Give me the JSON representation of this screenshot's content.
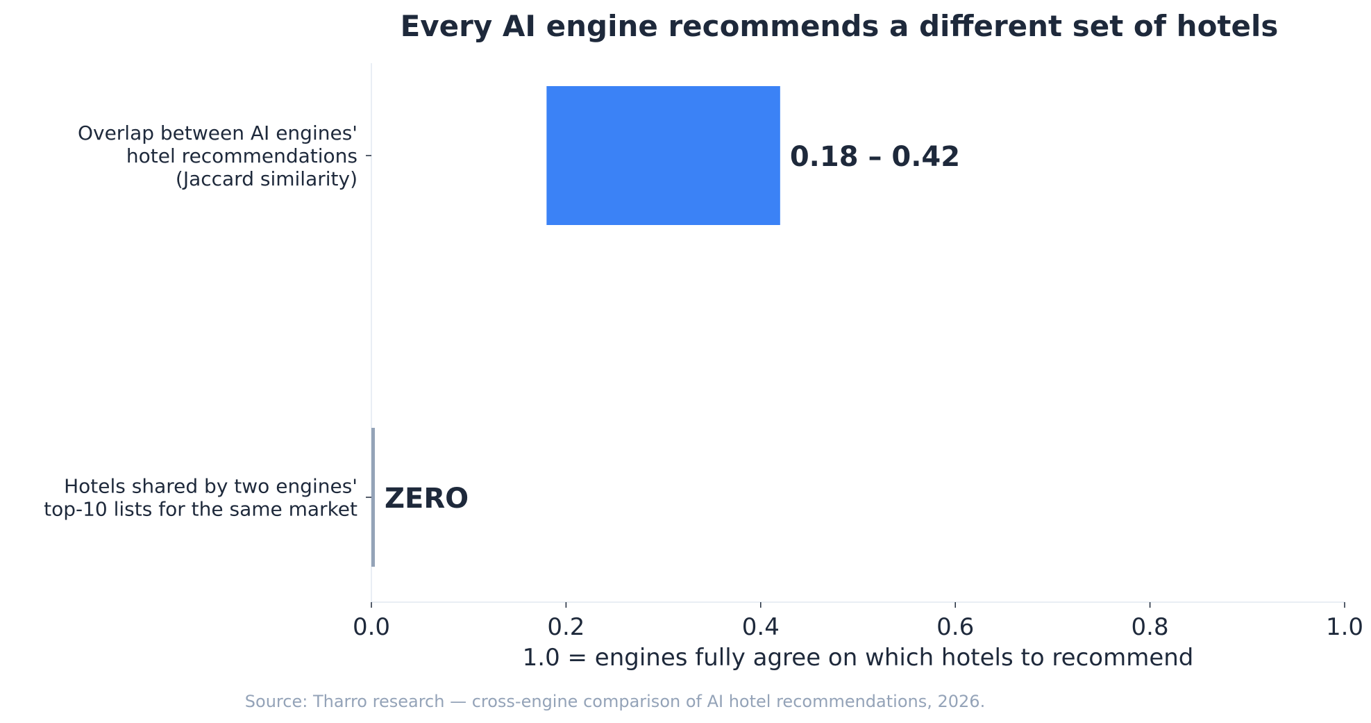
{
  "chart_data": {
    "type": "bar",
    "orientation": "horizontal",
    "title": "Every AI engine recommends a different set of hotels",
    "xlabel": "1.0 = engines fully agree on which hotels to recommend",
    "ylabel": "",
    "xlim": [
      0.0,
      1.0
    ],
    "xticks": [
      {
        "value": 0.0,
        "label": "0.0"
      },
      {
        "value": 0.2,
        "label": "0.2"
      },
      {
        "value": 0.4,
        "label": "0.4"
      },
      {
        "value": 0.6,
        "label": "0.6"
      },
      {
        "value": 0.8,
        "label": "0.8"
      },
      {
        "value": 1.0,
        "label": "1.0"
      }
    ],
    "grid": false,
    "legend": "none",
    "bars": [
      {
        "category_lines": [
          "Overlap between AI engines'",
          "hotel recommendations",
          "(Jaccard similarity)"
        ],
        "start": 0.18,
        "end": 0.42,
        "value_label": "0.18 – 0.42",
        "color": "#3b82f6"
      },
      {
        "category_lines": [
          "Hotels shared by two engines'",
          "top-10 lists for the same market"
        ],
        "start": 0.0,
        "end": 0.0,
        "value_label": "ZERO",
        "color": "#94a3b8"
      }
    ],
    "source": "Source: Tharro research — cross-engine comparison of AI hotel recommendations, 2026."
  },
  "colors": {
    "text": "#1e293b",
    "axis": "#e2e8f0",
    "source_text": "#94a3b8",
    "range_bar": "#3b82f6",
    "zero_bar": "#94a3b8"
  }
}
